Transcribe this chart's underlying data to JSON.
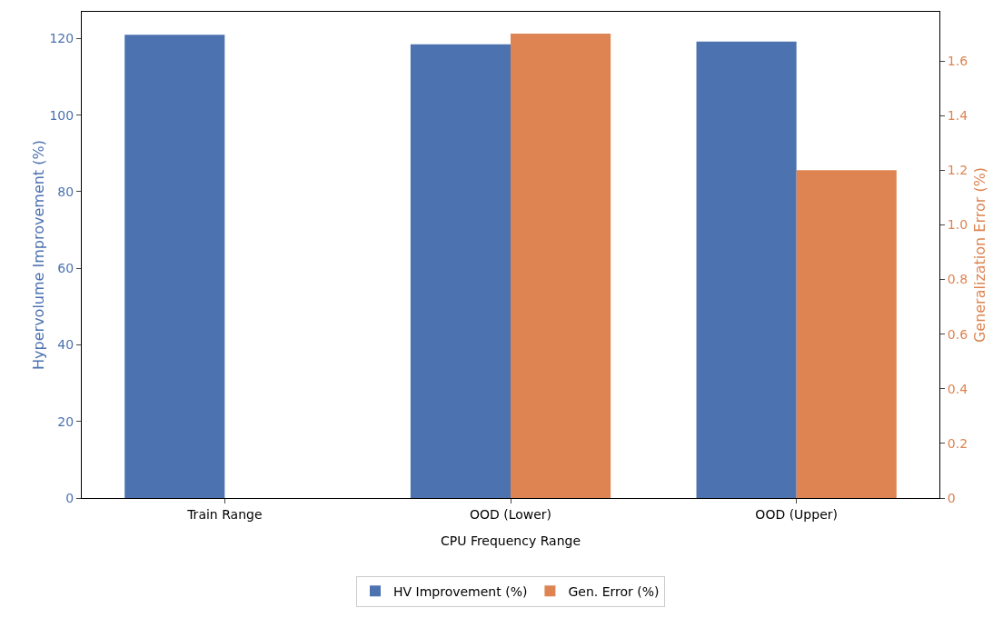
{
  "chart_data": {
    "type": "bar",
    "xlabel": "CPU Frequency Range",
    "ylabel": "Hypervolume Improvement (%)",
    "y2label": "Generalization Error (%)",
    "categories": [
      "Train Range",
      "OOD (Lower)",
      "OOD (Upper)"
    ],
    "series": [
      {
        "name": "HV Improvement (%)",
        "color": "#4c72b0",
        "values": [
          121,
          118.5,
          119.2
        ]
      },
      {
        "name": "Gen. Error (%)",
        "color": "#dd8452",
        "values": [
          null,
          1.7,
          1.2
        ],
        "axis": "y2"
      }
    ],
    "ylim": [
      0,
      127
    ],
    "yticks": [
      0,
      20,
      40,
      60,
      80,
      100,
      120
    ],
    "y2lim": [
      0,
      1.78
    ],
    "y2ticks": [
      0.0,
      {
        "value": 0.2,
        "label": "0.2"
      },
      {
        "value": 0.4,
        "label": "0.4"
      },
      {
        "value": 0.6,
        "label": "0.6"
      },
      {
        "value": 0.8,
        "label": "0.8"
      },
      {
        "value": 1.0,
        "label": "1.0"
      },
      {
        "value": 1.2,
        "label": "1.2"
      },
      {
        "value": 1.4,
        "label": "1.4"
      },
      {
        "value": 1.6,
        "label": "1.6"
      }
    ],
    "grid": false,
    "legend": "bottom"
  }
}
